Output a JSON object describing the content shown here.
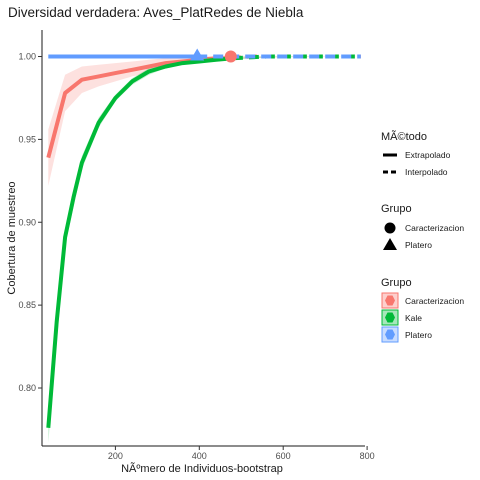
{
  "chart_data": {
    "type": "line",
    "title": "Diversidad verdadera: Aves_PlatRedes de Niebla",
    "xlabel": "NÃºmero de Individuos-bootstrap",
    "ylabel": "Cobertura de muestreo",
    "xlim": [
      25,
      795
    ],
    "ylim": [
      0.765,
      1.016
    ],
    "xticks": [
      {
        "value": 200,
        "label": "200"
      },
      {
        "value": 400,
        "label": "400"
      },
      {
        "value": 600,
        "label": "600"
      },
      {
        "value": 800,
        "label": "800"
      }
    ],
    "yticks": [
      {
        "value": 0.8,
        "label": "0.80"
      },
      {
        "value": 0.85,
        "label": "0.85"
      },
      {
        "value": 0.9,
        "label": "0.90"
      },
      {
        "value": 0.95,
        "label": "0.95"
      },
      {
        "value": 1.0,
        "label": "1.00"
      }
    ],
    "grid": false,
    "series": [
      {
        "name": "Caracterizacion",
        "color": "#f8766d",
        "interpolated": [
          [
            40,
            0.939
          ],
          [
            80,
            0.978
          ],
          [
            120,
            0.986
          ],
          [
            160,
            0.988
          ],
          [
            200,
            0.99
          ],
          [
            240,
            0.992
          ],
          [
            280,
            0.994
          ],
          [
            320,
            0.996
          ],
          [
            360,
            0.997
          ],
          [
            400,
            0.998
          ],
          [
            440,
            0.999
          ],
          [
            475,
            0.999
          ]
        ],
        "extrapolated": [
          [
            475,
            0.999
          ],
          [
            520,
            1.0
          ],
          [
            600,
            1.0
          ],
          [
            700,
            1.0
          ],
          [
            785,
            1.0
          ]
        ],
        "ci_lower": [
          [
            40,
            0.922
          ],
          [
            80,
            0.967
          ],
          [
            120,
            0.978
          ],
          [
            160,
            0.982
          ],
          [
            200,
            0.985
          ],
          [
            240,
            0.988
          ],
          [
            280,
            0.99
          ],
          [
            320,
            0.993
          ],
          [
            360,
            0.995
          ],
          [
            400,
            0.996
          ],
          [
            440,
            0.997
          ],
          [
            475,
            0.998
          ],
          [
            520,
            0.999
          ],
          [
            600,
            0.9995
          ],
          [
            700,
            1.0
          ],
          [
            785,
            1.0
          ]
        ],
        "ci_upper": [
          [
            40,
            0.956
          ],
          [
            80,
            0.989
          ],
          [
            120,
            0.994
          ],
          [
            160,
            0.995
          ],
          [
            200,
            0.996
          ],
          [
            240,
            0.997
          ],
          [
            280,
            0.998
          ],
          [
            320,
            0.999
          ],
          [
            360,
            1.0
          ],
          [
            400,
            1.0
          ],
          [
            440,
            1.0
          ],
          [
            475,
            1.0
          ],
          [
            520,
            1.0
          ],
          [
            600,
            1.0
          ],
          [
            700,
            1.0
          ],
          [
            785,
            1.0
          ]
        ],
        "observed": {
          "x": 475,
          "y": 1.0,
          "shape": "circle"
        }
      },
      {
        "name": "Kale",
        "color": "#00ba38",
        "interpolated": [
          [
            40,
            0.776
          ],
          [
            60,
            0.84
          ],
          [
            80,
            0.891
          ],
          [
            100,
            0.915
          ],
          [
            120,
            0.936
          ],
          [
            160,
            0.96
          ],
          [
            200,
            0.975
          ],
          [
            240,
            0.985
          ],
          [
            280,
            0.991
          ],
          [
            320,
            0.994
          ],
          [
            360,
            0.996
          ],
          [
            400,
            0.997
          ],
          [
            440,
            0.998
          ],
          [
            480,
            0.999
          ]
        ],
        "extrapolated": [
          [
            480,
            0.999
          ],
          [
            560,
            1.0
          ],
          [
            640,
            1.0
          ],
          [
            720,
            1.0
          ],
          [
            785,
            1.0
          ]
        ],
        "ci_lower": [
          [
            40,
            0.767
          ],
          [
            80,
            0.886
          ],
          [
            120,
            0.932
          ],
          [
            160,
            0.957
          ],
          [
            200,
            0.973
          ],
          [
            240,
            0.983
          ],
          [
            280,
            0.989
          ],
          [
            320,
            0.993
          ],
          [
            360,
            0.995
          ],
          [
            400,
            0.996
          ],
          [
            480,
            0.998
          ],
          [
            560,
            0.9995
          ],
          [
            785,
            1.0
          ]
        ],
        "ci_upper": [
          [
            40,
            0.785
          ],
          [
            80,
            0.896
          ],
          [
            120,
            0.94
          ],
          [
            160,
            0.963
          ],
          [
            200,
            0.977
          ],
          [
            240,
            0.987
          ],
          [
            280,
            0.993
          ],
          [
            320,
            0.995
          ],
          [
            360,
            0.997
          ],
          [
            400,
            0.998
          ],
          [
            480,
            1.0
          ],
          [
            560,
            1.0
          ],
          [
            785,
            1.0
          ]
        ]
      },
      {
        "name": "Platero",
        "color": "#619cff",
        "interpolated": [
          [
            40,
            1.0
          ],
          [
            200,
            1.0
          ],
          [
            395,
            1.0
          ]
        ],
        "extrapolated": [
          [
            395,
            1.0
          ],
          [
            550,
            1.0
          ],
          [
            785,
            1.0
          ]
        ],
        "ci_lower": [
          [
            40,
            1.0
          ],
          [
            785,
            1.0
          ]
        ],
        "ci_upper": [
          [
            40,
            1.0
          ],
          [
            785,
            1.0
          ]
        ],
        "observed": {
          "x": 395,
          "y": 1.0,
          "shape": "triangle"
        }
      }
    ],
    "legend": {
      "placement": "right",
      "method": {
        "title": "MÃ©todo",
        "items": [
          {
            "label": "Extrapolado",
            "line": "solid"
          },
          {
            "label": "Interpolado",
            "line": "dashed"
          }
        ]
      },
      "shape": {
        "title": "Grupo",
        "items": [
          {
            "label": "Caracterizacion",
            "shape": "circle"
          },
          {
            "label": "Platero",
            "shape": "triangle"
          }
        ]
      },
      "color": {
        "title": "Grupo",
        "items": [
          {
            "label": "Caracterizacion",
            "color": "#f8766d"
          },
          {
            "label": "Kale",
            "color": "#00ba38"
          },
          {
            "label": "Platero",
            "color": "#619cff"
          }
        ]
      }
    }
  }
}
